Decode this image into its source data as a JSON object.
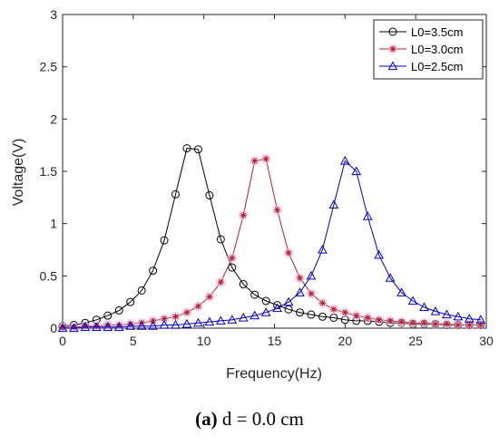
{
  "chart_data": {
    "type": "line",
    "title": "",
    "xlabel": "Frequency(Hz)",
    "ylabel": "Voltage(V)",
    "xlim": [
      0,
      30
    ],
    "ylim": [
      0,
      3
    ],
    "xticks": [
      "0",
      "5",
      "10",
      "15",
      "20",
      "25",
      "30"
    ],
    "yticks": [
      "0",
      "0.5",
      "1",
      "1.5",
      "2",
      "2.5",
      "3"
    ],
    "grid": false,
    "legend_position": "top-right",
    "series": [
      {
        "name": "L0=3.5cm",
        "color": "#000000",
        "marker": "circle",
        "x": [
          0,
          0.8,
          1.6,
          2.4,
          3.2,
          4,
          4.8,
          5.6,
          6.4,
          7.2,
          8,
          8.8,
          9.6,
          10.4,
          11.2,
          12,
          12.8,
          13.6,
          14.4,
          15.2,
          16,
          16.8,
          17.6,
          18.4,
          19.2,
          20,
          20.8,
          21.6,
          22.4,
          23.2,
          24,
          24.8,
          25.6,
          26.4,
          27.2,
          28,
          28.8,
          29.6
        ],
        "y": [
          0.02,
          0.03,
          0.05,
          0.08,
          0.12,
          0.17,
          0.25,
          0.36,
          0.55,
          0.84,
          1.28,
          1.72,
          1.71,
          1.27,
          0.85,
          0.58,
          0.42,
          0.32,
          0.26,
          0.22,
          0.18,
          0.15,
          0.13,
          0.11,
          0.1,
          0.08,
          0.07,
          0.07,
          0.06,
          0.05,
          0.05,
          0.04,
          0.04,
          0.04,
          0.03,
          0.03,
          0.03,
          0.03
        ]
      },
      {
        "name": "L0=3.0cm",
        "color": "#b22222",
        "marker": "star",
        "x": [
          0,
          0.8,
          1.6,
          2.4,
          3.2,
          4,
          4.8,
          5.6,
          6.4,
          7.2,
          8,
          8.8,
          9.6,
          10.4,
          11.2,
          12,
          12.8,
          13.6,
          14.4,
          15.2,
          16,
          16.8,
          17.6,
          18.4,
          19.2,
          20,
          20.8,
          21.6,
          22.4,
          23.2,
          24,
          24.8,
          25.6,
          26.4,
          27.2,
          28,
          28.8,
          29.6
        ],
        "y": [
          0.01,
          0.01,
          0.02,
          0.02,
          0.03,
          0.03,
          0.04,
          0.05,
          0.07,
          0.09,
          0.11,
          0.15,
          0.21,
          0.3,
          0.44,
          0.67,
          1.08,
          1.6,
          1.62,
          1.13,
          0.72,
          0.48,
          0.33,
          0.24,
          0.18,
          0.15,
          0.12,
          0.1,
          0.08,
          0.07,
          0.06,
          0.05,
          0.05,
          0.04,
          0.04,
          0.03,
          0.03,
          0.03
        ]
      },
      {
        "name": "L0=2.5cm",
        "color": "#0000cd",
        "marker": "triangle",
        "x": [
          0,
          0.8,
          1.6,
          2.4,
          3.2,
          4,
          4.8,
          5.6,
          6.4,
          7.2,
          8,
          8.8,
          9.6,
          10.4,
          11.2,
          12,
          12.8,
          13.6,
          14.4,
          15.2,
          16,
          16.8,
          17.6,
          18.4,
          19.2,
          20,
          20.8,
          21.6,
          22.4,
          23.2,
          24,
          24.8,
          25.6,
          26.4,
          27.2,
          28,
          28.8,
          29.6
        ],
        "y": [
          0.0,
          0.0,
          0.01,
          0.01,
          0.01,
          0.01,
          0.02,
          0.02,
          0.02,
          0.03,
          0.03,
          0.04,
          0.05,
          0.06,
          0.07,
          0.08,
          0.1,
          0.12,
          0.15,
          0.19,
          0.25,
          0.34,
          0.5,
          0.75,
          1.18,
          1.6,
          1.5,
          1.07,
          0.7,
          0.48,
          0.34,
          0.26,
          0.2,
          0.16,
          0.13,
          0.11,
          0.09,
          0.08
        ]
      }
    ]
  },
  "caption": {
    "label": "(a)",
    "text": " d = 0.0 cm"
  }
}
